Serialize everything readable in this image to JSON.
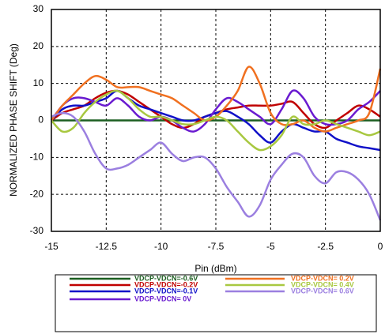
{
  "chart_data": {
    "type": "line",
    "xlabel": "Pin (dBm)",
    "ylabel": "NORMALIZED PHASE SHIFT (Deg)",
    "x": [
      -15,
      -14.5,
      -14,
      -13.5,
      -13,
      -12.5,
      -12,
      -11.5,
      -11,
      -10.5,
      -10,
      -9.5,
      -9,
      -8.5,
      -8,
      -7.5,
      -7,
      -6.5,
      -6,
      -5.5,
      -5,
      -4.5,
      -4,
      -3.5,
      -3,
      -2.5,
      -2,
      -1.5,
      -1,
      -0.5,
      0
    ],
    "xlim": [
      -15,
      0
    ],
    "xticks": [
      -15,
      -12.5,
      -10,
      -7.5,
      -5,
      -2.5,
      0
    ],
    "ylim": [
      -30,
      30
    ],
    "yticks": [
      -30,
      -20,
      -10,
      0,
      10,
      20,
      30
    ],
    "grid": true,
    "series": [
      {
        "name": "VDCP-VDCN=-0.6V",
        "color": "#1b5e20",
        "values": [
          0,
          0,
          0,
          0,
          0,
          0,
          0,
          0,
          0,
          0,
          0,
          0,
          0,
          0,
          0,
          0,
          0,
          0,
          0,
          0,
          0,
          0,
          0,
          0,
          0,
          0,
          0,
          0,
          0,
          0,
          0
        ]
      },
      {
        "name": "VDCP-VDCN=-0.2V",
        "color": "#c00000",
        "values": [
          0,
          2,
          3,
          4,
          6,
          7.5,
          8,
          7,
          5,
          3,
          1,
          -1,
          -2,
          -1,
          1,
          2,
          3,
          3.5,
          4,
          4,
          4,
          4.5,
          5,
          2,
          -1,
          -2,
          0,
          2,
          4,
          3,
          1
        ]
      },
      {
        "name": "VDCP-VDCN=-0.1V",
        "color": "#1010c8",
        "values": [
          0,
          3,
          4,
          4,
          5,
          6,
          8,
          6,
          4,
          3,
          2,
          1,
          0,
          0,
          1,
          2,
          2.5,
          1,
          -1,
          -4,
          -6,
          -3,
          -1,
          -2,
          -3,
          -3,
          -5,
          -6,
          -7,
          -7.5,
          -8
        ]
      },
      {
        "name": "VDCP-VDCN= 0V",
        "color": "#6a1bd0",
        "values": [
          0,
          4,
          6,
          6,
          5,
          4,
          6,
          4,
          1,
          0,
          1,
          0,
          -2,
          -3,
          -1,
          3,
          6,
          5,
          3,
          1,
          -1,
          3,
          8,
          6,
          1,
          -1,
          -1,
          0,
          3,
          5,
          8
        ]
      },
      {
        "name": "VDCP-VDCN= 0.2V",
        "color": "#f07020",
        "values": [
          0,
          4,
          7,
          10,
          12,
          11,
          9,
          9,
          9,
          8,
          7,
          6,
          4,
          2,
          0,
          1,
          4,
          8,
          14.5,
          10,
          2,
          -1,
          -1,
          0,
          -2,
          -3,
          -2,
          -1,
          0,
          2,
          14
        ]
      },
      {
        "name": "VDCP-VDCN= 0.4V",
        "color": "#a8c840",
        "values": [
          0,
          -3,
          -2,
          2,
          5,
          7,
          8,
          6,
          3,
          1,
          1,
          0,
          -1,
          -1,
          0,
          1,
          0,
          -3,
          -6,
          -8,
          -7,
          -4,
          1,
          -1,
          -1,
          0,
          -1,
          -2,
          -3,
          -4,
          -3
        ]
      },
      {
        "name": "VDCP-VDCN= 0.6V",
        "color": "#9b7fe0",
        "values": [
          1,
          2,
          1,
          -3,
          -9,
          -13,
          -13,
          -12,
          -10,
          -8,
          -6,
          -9,
          -11,
          -10,
          -10,
          -13,
          -18,
          -22,
          -26,
          -23,
          -16,
          -12,
          -9,
          -10,
          -15,
          -17,
          -14,
          -14,
          -16,
          -20,
          -27
        ]
      }
    ]
  }
}
